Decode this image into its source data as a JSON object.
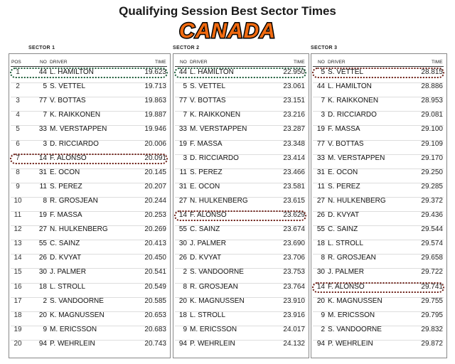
{
  "title": "Qualifying Session Best Sector Times",
  "brand": "CANADA",
  "headers": {
    "pos": "POS",
    "no": "NO",
    "driver": "DRIVER",
    "time": "TIME"
  },
  "colors": {
    "green_highlight": "#1c5c38",
    "red_highlight": "#6b1d14",
    "brand_fill": "#f06a10"
  },
  "chart_data": {
    "type": "table",
    "positions": [
      1,
      2,
      3,
      4,
      5,
      6,
      7,
      8,
      9,
      10,
      11,
      12,
      13,
      14,
      15,
      16,
      17,
      18,
      19,
      20
    ],
    "sectors": [
      {
        "name": "SECTOR 1",
        "rows": [
          {
            "no": "44",
            "driver": "L. HAMILTON",
            "time": "19.623",
            "highlight": "green"
          },
          {
            "no": "5",
            "driver": "S. VETTEL",
            "time": "19.713"
          },
          {
            "no": "77",
            "driver": "V. BOTTAS",
            "time": "19.863"
          },
          {
            "no": "7",
            "driver": "K. RAIKKONEN",
            "time": "19.887"
          },
          {
            "no": "33",
            "driver": "M. VERSTAPPEN",
            "time": "19.946"
          },
          {
            "no": "3",
            "driver": "D. RICCIARDO",
            "time": "20.006"
          },
          {
            "no": "14",
            "driver": "F. ALONSO",
            "time": "20.091",
            "highlight": "red"
          },
          {
            "no": "31",
            "driver": "E. OCON",
            "time": "20.145"
          },
          {
            "no": "11",
            "driver": "S. PEREZ",
            "time": "20.207"
          },
          {
            "no": "8",
            "driver": "R. GROSJEAN",
            "time": "20.244"
          },
          {
            "no": "19",
            "driver": "F. MASSA",
            "time": "20.253"
          },
          {
            "no": "27",
            "driver": "N. HULKENBERG",
            "time": "20.269"
          },
          {
            "no": "55",
            "driver": "C. SAINZ",
            "time": "20.413"
          },
          {
            "no": "26",
            "driver": "D. KVYAT",
            "time": "20.450"
          },
          {
            "no": "30",
            "driver": "J. PALMER",
            "time": "20.541"
          },
          {
            "no": "18",
            "driver": "L. STROLL",
            "time": "20.549"
          },
          {
            "no": "2",
            "driver": "S. VANDOORNE",
            "time": "20.585"
          },
          {
            "no": "20",
            "driver": "K. MAGNUSSEN",
            "time": "20.653"
          },
          {
            "no": "9",
            "driver": "M. ERICSSON",
            "time": "20.683"
          },
          {
            "no": "94",
            "driver": "P. WEHRLEIN",
            "time": "20.743"
          }
        ]
      },
      {
        "name": "SECTOR 2",
        "rows": [
          {
            "no": "44",
            "driver": "L. HAMILTON",
            "time": "22.950",
            "highlight": "green"
          },
          {
            "no": "5",
            "driver": "S. VETTEL",
            "time": "23.061"
          },
          {
            "no": "77",
            "driver": "V. BOTTAS",
            "time": "23.151"
          },
          {
            "no": "7",
            "driver": "K. RAIKKONEN",
            "time": "23.216"
          },
          {
            "no": "33",
            "driver": "M. VERSTAPPEN",
            "time": "23.287"
          },
          {
            "no": "19",
            "driver": "F. MASSA",
            "time": "23.348"
          },
          {
            "no": "3",
            "driver": "D. RICCIARDO",
            "time": "23.414"
          },
          {
            "no": "11",
            "driver": "S. PEREZ",
            "time": "23.466"
          },
          {
            "no": "31",
            "driver": "E. OCON",
            "time": "23.581"
          },
          {
            "no": "27",
            "driver": "N. HULKENBERG",
            "time": "23.615"
          },
          {
            "no": "14",
            "driver": "F. ALONSO",
            "time": "23.629",
            "highlight": "red"
          },
          {
            "no": "55",
            "driver": "C. SAINZ",
            "time": "23.674"
          },
          {
            "no": "30",
            "driver": "J. PALMER",
            "time": "23.690"
          },
          {
            "no": "26",
            "driver": "D. KVYAT",
            "time": "23.706"
          },
          {
            "no": "2",
            "driver": "S. VANDOORNE",
            "time": "23.753"
          },
          {
            "no": "8",
            "driver": "R. GROSJEAN",
            "time": "23.764"
          },
          {
            "no": "20",
            "driver": "K. MAGNUSSEN",
            "time": "23.910"
          },
          {
            "no": "18",
            "driver": "L. STROLL",
            "time": "23.916"
          },
          {
            "no": "9",
            "driver": "M. ERICSSON",
            "time": "24.017"
          },
          {
            "no": "94",
            "driver": "P. WEHRLEIN",
            "time": "24.132"
          }
        ]
      },
      {
        "name": "SECTOR 3",
        "rows": [
          {
            "no": "5",
            "driver": "S. VETTEL",
            "time": "28.815",
            "highlight": "red"
          },
          {
            "no": "44",
            "driver": "L. HAMILTON",
            "time": "28.886"
          },
          {
            "no": "7",
            "driver": "K. RAIKKONEN",
            "time": "28.953"
          },
          {
            "no": "3",
            "driver": "D. RICCIARDO",
            "time": "29.081"
          },
          {
            "no": "19",
            "driver": "F. MASSA",
            "time": "29.100"
          },
          {
            "no": "77",
            "driver": "V. BOTTAS",
            "time": "29.109"
          },
          {
            "no": "33",
            "driver": "M. VERSTAPPEN",
            "time": "29.170"
          },
          {
            "no": "31",
            "driver": "E. OCON",
            "time": "29.250"
          },
          {
            "no": "11",
            "driver": "S. PEREZ",
            "time": "29.285"
          },
          {
            "no": "27",
            "driver": "N. HULKENBERG",
            "time": "29.372"
          },
          {
            "no": "26",
            "driver": "D. KVYAT",
            "time": "29.436"
          },
          {
            "no": "55",
            "driver": "C. SAINZ",
            "time": "29.544"
          },
          {
            "no": "18",
            "driver": "L. STROLL",
            "time": "29.574"
          },
          {
            "no": "8",
            "driver": "R. GROSJEAN",
            "time": "29.658"
          },
          {
            "no": "30",
            "driver": "J. PALMER",
            "time": "29.722"
          },
          {
            "no": "14",
            "driver": "F. ALONSO",
            "time": "29.741",
            "highlight": "red"
          },
          {
            "no": "20",
            "driver": "K. MAGNUSSEN",
            "time": "29.755"
          },
          {
            "no": "9",
            "driver": "M. ERICSSON",
            "time": "29.795"
          },
          {
            "no": "2",
            "driver": "S. VANDOORNE",
            "time": "29.832"
          },
          {
            "no": "94",
            "driver": "P. WEHRLEIN",
            "time": "29.872"
          }
        ]
      }
    ]
  }
}
